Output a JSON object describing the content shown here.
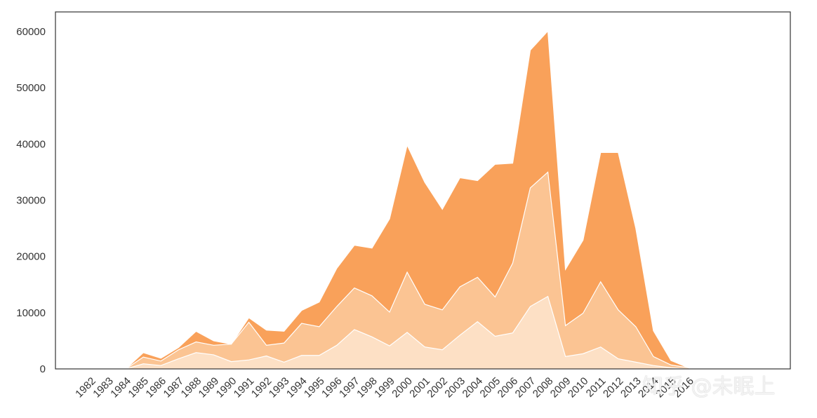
{
  "chart_data": {
    "type": "area",
    "stacked": true,
    "title": "",
    "xlabel": "",
    "ylabel": "",
    "categories": [
      "1982",
      "1983",
      "1984",
      "1985",
      "1986",
      "1987",
      "1988",
      "1989",
      "1990",
      "1991",
      "1992",
      "1993",
      "1994",
      "1995",
      "1996",
      "1997",
      "1998",
      "1999",
      "2000",
      "2001",
      "2002",
      "2003",
      "2004",
      "2005",
      "2006",
      "2007",
      "2008",
      "2009",
      "2010",
      "2011",
      "2012",
      "2013",
      "2014",
      "2015",
      "2016"
    ],
    "ylim": [
      0,
      63500
    ],
    "yticks": [
      0,
      10000,
      20000,
      30000,
      40000,
      50000,
      60000
    ],
    "grid": false,
    "series": [
      {
        "values": [
          0,
          0,
          0,
          900,
          600,
          1800,
          2900,
          2500,
          1300,
          1600,
          2300,
          1200,
          2400,
          2400,
          4200,
          7000,
          5700,
          4100,
          6500,
          3900,
          3400,
          6000,
          8400,
          5800,
          6400,
          11100,
          12900,
          2200,
          2700,
          3900,
          1800,
          1200,
          600,
          200,
          0
        ],
        "color": "#fde0c5"
      },
      {
        "values": [
          0,
          0,
          0,
          1200,
          800,
          1600,
          1900,
          1700,
          3100,
          6700,
          1900,
          3400,
          5700,
          5100,
          6900,
          7400,
          7300,
          6000,
          10700,
          7600,
          7100,
          8600,
          7900,
          7000,
          12400,
          21100,
          22100,
          5500,
          7200,
          11600,
          8700,
          6300,
          1600,
          500,
          200
        ],
        "color": "#fbc493"
      },
      {
        "values": [
          0,
          100,
          0,
          800,
          500,
          400,
          1900,
          800,
          0,
          800,
          2700,
          2100,
          2300,
          4400,
          6800,
          7600,
          8500,
          16600,
          22600,
          21700,
          17900,
          19400,
          17200,
          23600,
          17800,
          24500,
          25100,
          10000,
          13000,
          23000,
          28000,
          17500,
          4600,
          800,
          0
        ],
        "color": "#f9a15a"
      }
    ]
  },
  "watermark": {
    "text": "知乎 @未眠上"
  }
}
